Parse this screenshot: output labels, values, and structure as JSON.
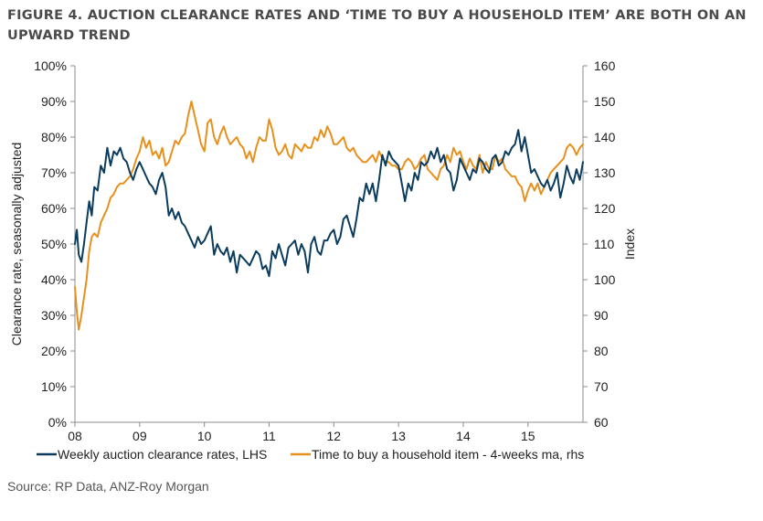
{
  "title": "FIGURE 4. AUCTION CLEARANCE RATES AND ‘TIME TO BUY A HOUSEHOLD ITEM’ ARE BOTH ON AN UPWARD TREND",
  "source": "Source: RP Data, ANZ-Roy Morgan",
  "chart_data": {
    "type": "line",
    "ylabel": "Clearance rate, seasonally adjusted",
    "y2label": "Index",
    "xlim": [
      2008.0,
      2015.85
    ],
    "ylim": [
      0,
      100
    ],
    "y2lim": [
      60,
      160
    ],
    "x_ticks": [
      {
        "value": 2008,
        "label": "08"
      },
      {
        "value": 2009,
        "label": "09"
      },
      {
        "value": 2010,
        "label": "10"
      },
      {
        "value": 2011,
        "label": "11"
      },
      {
        "value": 2012,
        "label": "12"
      },
      {
        "value": 2013,
        "label": "13"
      },
      {
        "value": 2014,
        "label": "14"
      },
      {
        "value": 2015,
        "label": "15"
      }
    ],
    "y_ticks": [
      "0%",
      "10%",
      "20%",
      "30%",
      "40%",
      "50%",
      "60%",
      "70%",
      "80%",
      "90%",
      "100%"
    ],
    "y2_ticks": [
      "60",
      "70",
      "80",
      "90",
      "100",
      "110",
      "120",
      "130",
      "140",
      "150",
      "160"
    ],
    "grid": false,
    "legend_position": "bottom",
    "series": [
      {
        "name": "Weekly auction clearance rates, LHS",
        "axis": "left",
        "color": "#0b3c5d",
        "x": [
          2008.0,
          2008.03,
          2008.06,
          2008.1,
          2008.14,
          2008.18,
          2008.22,
          2008.26,
          2008.3,
          2008.35,
          2008.4,
          2008.45,
          2008.5,
          2008.55,
          2008.6,
          2008.65,
          2008.7,
          2008.75,
          2008.8,
          2008.85,
          2008.9,
          2008.95,
          2009.0,
          2009.05,
          2009.1,
          2009.15,
          2009.2,
          2009.25,
          2009.3,
          2009.35,
          2009.4,
          2009.45,
          2009.5,
          2009.55,
          2009.6,
          2009.65,
          2009.7,
          2009.75,
          2009.8,
          2009.85,
          2009.9,
          2009.95,
          2010.0,
          2010.05,
          2010.1,
          2010.15,
          2010.2,
          2010.25,
          2010.3,
          2010.35,
          2010.4,
          2010.45,
          2010.5,
          2010.55,
          2010.6,
          2010.65,
          2010.7,
          2010.75,
          2010.8,
          2010.85,
          2010.9,
          2010.95,
          2011.0,
          2011.05,
          2011.1,
          2011.15,
          2011.2,
          2011.25,
          2011.3,
          2011.35,
          2011.4,
          2011.45,
          2011.5,
          2011.55,
          2011.6,
          2011.65,
          2011.7,
          2011.75,
          2011.8,
          2011.85,
          2011.9,
          2011.95,
          2012.0,
          2012.05,
          2012.1,
          2012.15,
          2012.2,
          2012.25,
          2012.3,
          2012.35,
          2012.4,
          2012.45,
          2012.5,
          2012.55,
          2012.6,
          2012.65,
          2012.7,
          2012.75,
          2012.8,
          2012.85,
          2012.9,
          2012.95,
          2013.0,
          2013.05,
          2013.1,
          2013.15,
          2013.2,
          2013.25,
          2013.3,
          2013.35,
          2013.4,
          2013.45,
          2013.5,
          2013.55,
          2013.6,
          2013.65,
          2013.7,
          2013.75,
          2013.8,
          2013.85,
          2013.9,
          2013.95,
          2014.0,
          2014.05,
          2014.1,
          2014.15,
          2014.2,
          2014.25,
          2014.3,
          2014.35,
          2014.4,
          2014.45,
          2014.5,
          2014.55,
          2014.6,
          2014.65,
          2014.7,
          2014.75,
          2014.8,
          2014.85,
          2014.9,
          2014.95,
          2015.0,
          2015.05,
          2015.1,
          2015.15,
          2015.2,
          2015.25,
          2015.3,
          2015.35,
          2015.4,
          2015.45,
          2015.5,
          2015.55,
          2015.6,
          2015.65,
          2015.7,
          2015.75,
          2015.8,
          2015.85
        ],
        "y": [
          50,
          54,
          47,
          45,
          50,
          56,
          62,
          58,
          66,
          65,
          72,
          70,
          77,
          72,
          76,
          75,
          77,
          74,
          73,
          70,
          68,
          71,
          73,
          71,
          69,
          67,
          66,
          64,
          68,
          70,
          66,
          58,
          60,
          57,
          59,
          56,
          55,
          53,
          51,
          49,
          52,
          50,
          51,
          53,
          55,
          47,
          50,
          48,
          47,
          49,
          45,
          48,
          42,
          47,
          46,
          45,
          44,
          46,
          48,
          47,
          43,
          44,
          41,
          48,
          46,
          50,
          47,
          44,
          49,
          50,
          51,
          47,
          50,
          48,
          42,
          50,
          52,
          48,
          47,
          51,
          51,
          53,
          54,
          50,
          52,
          57,
          58,
          55,
          52,
          57,
          63,
          62,
          67,
          64,
          67,
          62,
          68,
          75,
          72,
          76,
          74,
          73,
          72,
          67,
          62,
          67,
          65,
          70,
          68,
          73,
          72,
          73,
          76,
          74,
          77,
          73,
          75,
          71,
          70,
          65,
          68,
          74,
          72,
          70,
          68,
          71,
          70,
          74,
          73,
          71,
          70,
          74,
          75,
          72,
          73,
          76,
          75,
          77,
          78,
          82,
          76,
          80,
          75,
          70,
          71,
          69,
          67,
          66,
          68,
          65,
          67,
          70,
          63,
          67,
          72,
          69,
          67,
          71,
          68,
          73
        ]
      },
      {
        "name": "Time to buy a household item - 4-weeks ma, rhs",
        "axis": "right",
        "color": "#e8901c",
        "x": [
          2008.0,
          2008.03,
          2008.06,
          2008.1,
          2008.14,
          2008.18,
          2008.22,
          2008.26,
          2008.3,
          2008.35,
          2008.4,
          2008.45,
          2008.5,
          2008.55,
          2008.6,
          2008.65,
          2008.7,
          2008.75,
          2008.8,
          2008.85,
          2008.9,
          2008.95,
          2009.0,
          2009.05,
          2009.1,
          2009.15,
          2009.2,
          2009.25,
          2009.3,
          2009.35,
          2009.4,
          2009.45,
          2009.5,
          2009.55,
          2009.6,
          2009.65,
          2009.7,
          2009.75,
          2009.8,
          2009.85,
          2009.9,
          2009.95,
          2010.0,
          2010.05,
          2010.1,
          2010.15,
          2010.2,
          2010.25,
          2010.3,
          2010.35,
          2010.4,
          2010.45,
          2010.5,
          2010.55,
          2010.6,
          2010.65,
          2010.7,
          2010.75,
          2010.8,
          2010.85,
          2010.9,
          2010.95,
          2011.0,
          2011.05,
          2011.1,
          2011.15,
          2011.2,
          2011.25,
          2011.3,
          2011.35,
          2011.4,
          2011.45,
          2011.5,
          2011.55,
          2011.6,
          2011.65,
          2011.7,
          2011.75,
          2011.8,
          2011.85,
          2011.9,
          2011.95,
          2012.0,
          2012.05,
          2012.1,
          2012.15,
          2012.2,
          2012.25,
          2012.3,
          2012.35,
          2012.4,
          2012.45,
          2012.5,
          2012.55,
          2012.6,
          2012.65,
          2012.7,
          2012.75,
          2012.8,
          2012.85,
          2012.9,
          2012.95,
          2013.0,
          2013.05,
          2013.1,
          2013.15,
          2013.2,
          2013.25,
          2013.3,
          2013.35,
          2013.4,
          2013.45,
          2013.5,
          2013.55,
          2013.6,
          2013.65,
          2013.7,
          2013.75,
          2013.8,
          2013.85,
          2013.9,
          2013.95,
          2014.0,
          2014.05,
          2014.1,
          2014.15,
          2014.2,
          2014.25,
          2014.3,
          2014.35,
          2014.4,
          2014.45,
          2014.5,
          2014.55,
          2014.6,
          2014.65,
          2014.7,
          2014.75,
          2014.8,
          2014.85,
          2014.9,
          2014.95,
          2015.0,
          2015.05,
          2015.1,
          2015.15,
          2015.2,
          2015.25,
          2015.3,
          2015.35,
          2015.4,
          2015.45,
          2015.5,
          2015.55,
          2015.6,
          2015.65,
          2015.7,
          2015.75,
          2015.8,
          2015.85
        ],
        "y": [
          98,
          91,
          86,
          90,
          95,
          100,
          108,
          112,
          113,
          112,
          116,
          118,
          120,
          123,
          124,
          126,
          127,
          127,
          128,
          129,
          131,
          134,
          136,
          140,
          137,
          139,
          135,
          136,
          134,
          137,
          132,
          133,
          136,
          139,
          138,
          140,
          141,
          146,
          150,
          146,
          142,
          138,
          136,
          144,
          145,
          140,
          138,
          141,
          143,
          140,
          138,
          139,
          140,
          138,
          137,
          134,
          136,
          133,
          137,
          140,
          139,
          139,
          145,
          142,
          137,
          135,
          136,
          138,
          135,
          134,
          138,
          137,
          136,
          138,
          137,
          137,
          140,
          139,
          142,
          140,
          143,
          141,
          138,
          138,
          139,
          140,
          137,
          136,
          137,
          135,
          134,
          133,
          133,
          134,
          135,
          133,
          136,
          134,
          133,
          133,
          132,
          132,
          131,
          131,
          133,
          134,
          133,
          131,
          132,
          134,
          135,
          131,
          130,
          129,
          128,
          131,
          132,
          135,
          133,
          137,
          135,
          136,
          133,
          131,
          134,
          132,
          131,
          135,
          130,
          133,
          131,
          131,
          135,
          133,
          134,
          131,
          130,
          129,
          129,
          127,
          126,
          122,
          125,
          127,
          125,
          127,
          124,
          126,
          128,
          130,
          131,
          132,
          133,
          134,
          137,
          138,
          137,
          135,
          137,
          138
        ]
      }
    ]
  }
}
